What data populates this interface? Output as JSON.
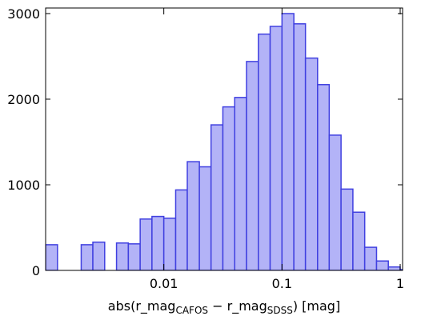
{
  "chart_data": {
    "type": "histogram",
    "bins": [
      0.001,
      0.00126,
      0.00158,
      0.002,
      0.00251,
      0.00316,
      0.00398,
      0.00501,
      0.00631,
      0.00794,
      0.01,
      0.0126,
      0.0158,
      0.02,
      0.0251,
      0.0316,
      0.0398,
      0.0501,
      0.0631,
      0.0794,
      0.1,
      0.126,
      0.158,
      0.2,
      0.251,
      0.316,
      0.398,
      0.501,
      0.631,
      0.794,
      1,
      1.26
    ],
    "values": [
      300,
      0,
      0,
      300,
      330,
      0,
      320,
      310,
      600,
      630,
      610,
      940,
      1270,
      1210,
      1700,
      1910,
      2020,
      2440,
      2760,
      2850,
      3000,
      2880,
      2480,
      2170,
      1580,
      950,
      680,
      270,
      110,
      40,
      10
    ],
    "color": "#b3b3f7",
    "edge_color": "#4040e0",
    "xlabel": [
      "abs(r_mag",
      "CAFOS",
      " − r_mag",
      "SDSS",
      ") [mag]"
    ],
    "xscale": "log",
    "xlim": [
      0.001,
      1.048
    ],
    "xticks": [
      0.01,
      0.1,
      1
    ],
    "ylim": [
      0,
      3065
    ],
    "yticks": [
      0,
      1000,
      2000,
      3000
    ]
  }
}
